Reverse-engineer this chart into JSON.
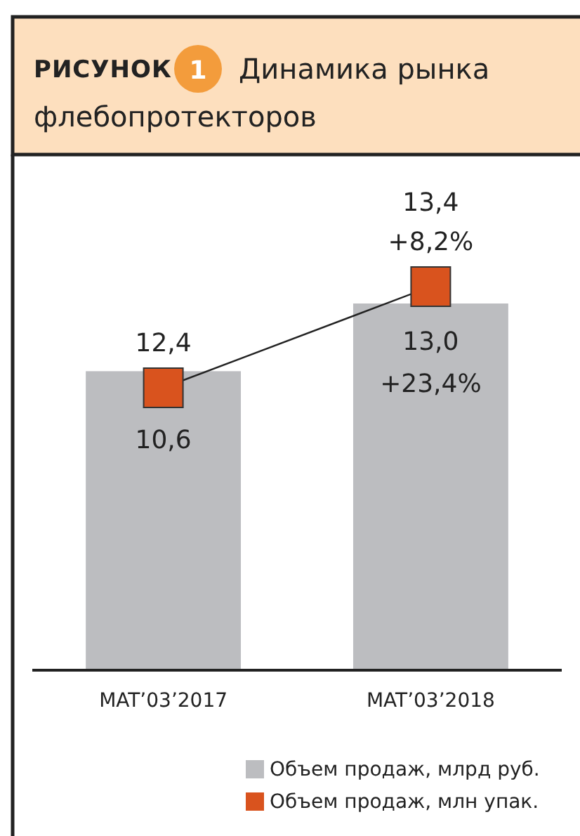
{
  "chart_data": {
    "type": "bar",
    "title": "Динамика рынка флебопротекторов",
    "categories": [
      "MAT’03’2017",
      "MAT’03’2018"
    ],
    "series": [
      {
        "name": "Объем продаж, млрд руб.",
        "color": "#bcbdc0",
        "values": [
          10.6,
          13.0
        ],
        "value_labels": [
          "10,6",
          "13,0"
        ]
      },
      {
        "name": "Объем продаж, млн упак.",
        "type": "line",
        "axis": "y2",
        "marker": "square",
        "color": "#d9531e",
        "values": [
          12.4,
          13.4
        ],
        "value_labels": [
          "12,4",
          "13,4"
        ]
      }
    ],
    "tick_labels": "x",
    "legend": "bottom right",
    "annotations": [
      "РИСУНОК",
      "1",
      "+23,4%",
      "+8,2%"
    ]
  }
}
